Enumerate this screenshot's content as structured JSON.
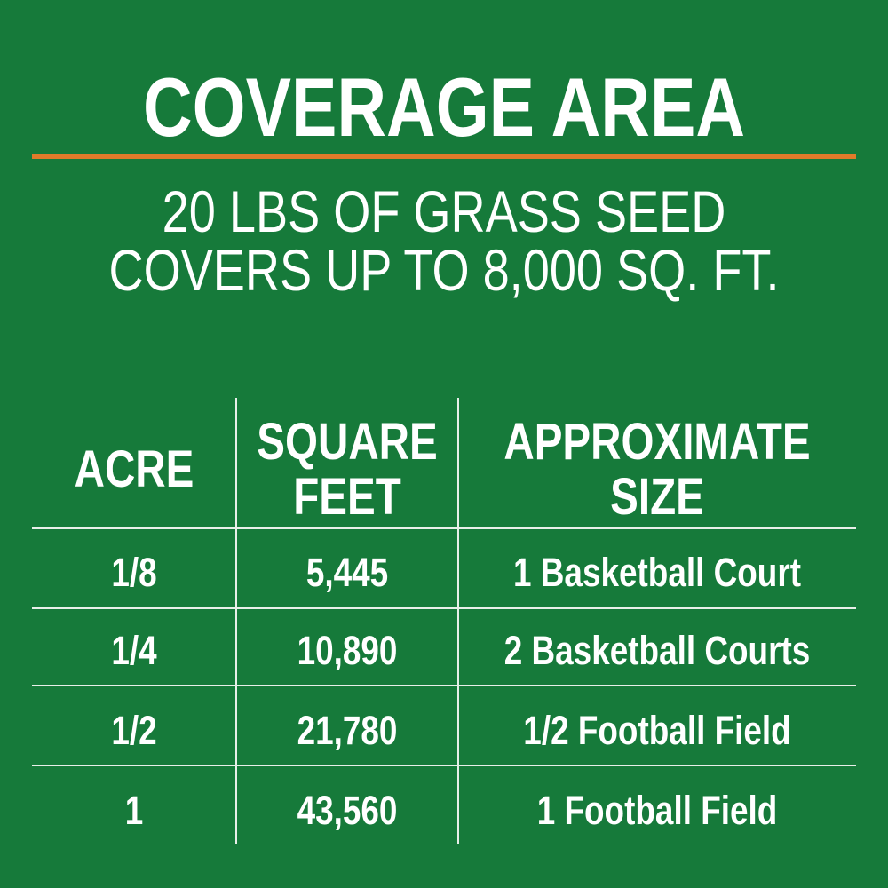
{
  "title": "COVERAGE AREA",
  "subtitle": [
    "20 LBS OF GRASS SEED",
    "COVERS UP TO 8,000 SQ. FT."
  ],
  "colors": {
    "background": "#167a3a",
    "accent_rule": "#e07b2a",
    "text": "#ffffff"
  },
  "table": {
    "headers": [
      [
        "ACRE"
      ],
      [
        "SQUARE",
        "FEET"
      ],
      [
        "APPROXIMATE",
        "SIZE"
      ]
    ],
    "rows": [
      [
        "1/8",
        "5,445",
        "1 Basketball Court"
      ],
      [
        "1/4",
        "10,890",
        "2 Basketball Courts"
      ],
      [
        "1/2",
        "21,780",
        "1/2 Football Field"
      ],
      [
        "1",
        "43,560",
        "1 Football Field"
      ]
    ]
  }
}
